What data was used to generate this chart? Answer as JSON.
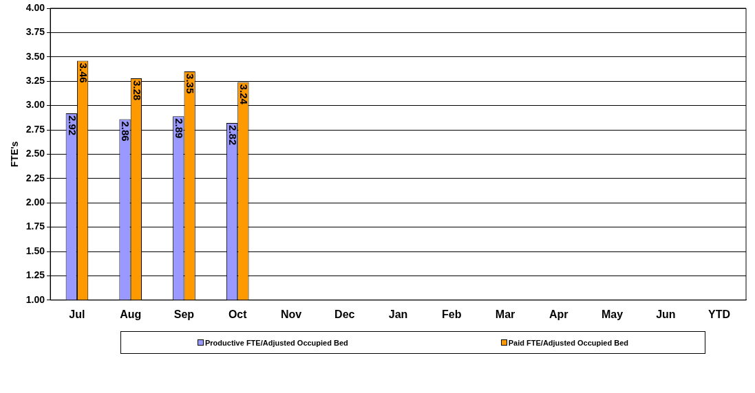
{
  "chart_data": {
    "type": "bar",
    "ylabel": "FTE's",
    "categories": [
      "Jul",
      "Aug",
      "Sep",
      "Oct",
      "Nov",
      "Dec",
      "Jan",
      "Feb",
      "Mar",
      "Apr",
      "May",
      "Jun",
      "YTD"
    ],
    "series": [
      {
        "name": "Productive FTE/Adjusted  Occupied Bed",
        "color": "#9999ff",
        "values": [
          2.92,
          2.86,
          2.89,
          2.82,
          null,
          null,
          null,
          null,
          null,
          null,
          null,
          null,
          null
        ]
      },
      {
        "name": "Paid FTE/Adjusted  Occupied Bed",
        "color": "#ff9900",
        "values": [
          3.46,
          3.28,
          3.35,
          3.24,
          null,
          null,
          null,
          null,
          null,
          null,
          null,
          null,
          null
        ]
      }
    ],
    "data_labels": true,
    "ylim": [
      1,
      4
    ],
    "yticks": [
      "1.00",
      "1.25",
      "1.50",
      "1.75",
      "2.00",
      "2.25",
      "2.50",
      "2.75",
      "3.00",
      "3.25",
      "3.50",
      "3.75",
      "4.00"
    ],
    "grid": "y",
    "legend": "bottom"
  }
}
